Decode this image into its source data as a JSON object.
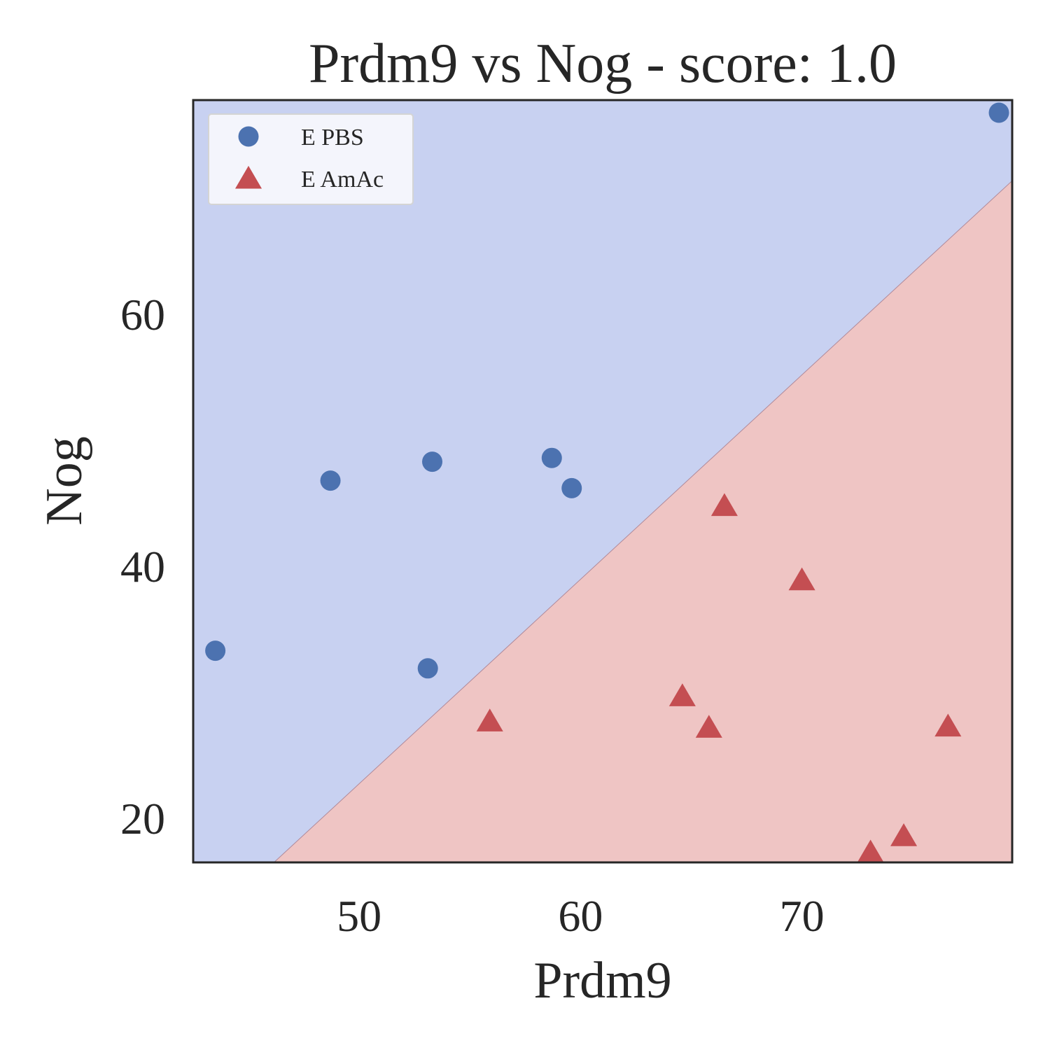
{
  "chart_data": {
    "type": "scatter",
    "title": "Prdm9 vs Nog - score: 1.0",
    "xlabel": "Prdm9",
    "ylabel": "Nog",
    "xlim": [
      42.5,
      79.5
    ],
    "ylim": [
      16.5,
      77.0
    ],
    "xticks": [
      50,
      60,
      70
    ],
    "yticks": [
      20,
      40,
      60
    ],
    "grid": false,
    "legend_position": "top-left",
    "decision_boundary": [
      [
        46.15,
        16.5
      ],
      [
        79.5,
        70.6
      ]
    ],
    "region_colors": {
      "upper": "#c8d1f1",
      "lower": "#efc5c4"
    },
    "series": [
      {
        "name": "E PBS",
        "marker": "circle",
        "color": "#4c72b0",
        "points": [
          [
            43.5,
            33.3
          ],
          [
            48.7,
            46.8
          ],
          [
            53.3,
            48.3
          ],
          [
            53.1,
            31.9
          ],
          [
            58.7,
            48.6
          ],
          [
            59.6,
            46.2
          ],
          [
            78.9,
            76.0
          ]
        ]
      },
      {
        "name": "E AmAc",
        "marker": "triangle",
        "color": "#c44e52",
        "points": [
          [
            55.9,
            27.7
          ],
          [
            64.6,
            29.7
          ],
          [
            65.8,
            27.2
          ],
          [
            66.5,
            44.8
          ],
          [
            70.0,
            38.9
          ],
          [
            73.1,
            17.3
          ],
          [
            74.6,
            18.6
          ],
          [
            76.6,
            27.3
          ]
        ]
      }
    ]
  }
}
